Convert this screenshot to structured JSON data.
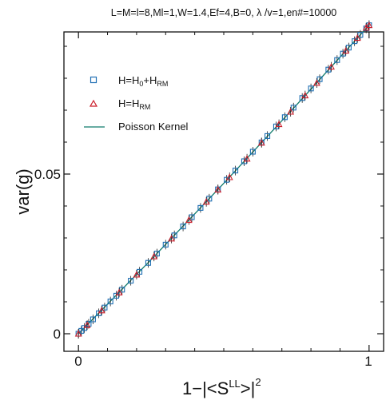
{
  "chart_data": {
    "type": "scatter",
    "title": "L=M=l=8,Ml=1,W=1.4,Ef=4,B=0, λ /v=1,en#=10000",
    "xlabel": "1−|<S",
    "xlabel_sup_ll": "LL",
    "xlabel_tail": ">|",
    "xlabel_sup_2": "2",
    "ylabel": "var(g)",
    "xlim": [
      -0.05,
      1.05
    ],
    "ylim": [
      -0.0055,
      0.0945
    ],
    "x_ticks": [
      0,
      1
    ],
    "y_ticks": [
      0,
      0.05
    ],
    "x_tick_labels": [
      "0",
      "1"
    ],
    "y_tick_labels": [
      "0",
      "0.05"
    ],
    "grid": false,
    "legend_position": "top-left",
    "legend": {
      "entry1": {
        "pre": "H=H",
        "sub1": "0",
        "mid": "+H",
        "sub2": "RM"
      },
      "entry2": {
        "pre": "H=H",
        "sub1": "RM"
      },
      "entry3": "Poisson Kernel"
    },
    "series": [
      {
        "name": "H=H0+HRM",
        "marker": "square",
        "color": "#1f6fb3",
        "x": [
          0.0,
          0.01,
          0.02,
          0.035,
          0.05,
          0.07,
          0.09,
          0.11,
          0.13,
          0.15,
          0.18,
          0.21,
          0.24,
          0.27,
          0.3,
          0.33,
          0.36,
          0.39,
          0.42,
          0.45,
          0.48,
          0.51,
          0.54,
          0.57,
          0.6,
          0.63,
          0.65,
          0.68,
          0.71,
          0.74,
          0.77,
          0.8,
          0.83,
          0.86,
          0.89,
          0.91,
          0.93,
          0.95,
          0.97,
          0.99,
          1.0
        ],
        "y": [
          0.0,
          0.0009,
          0.0018,
          0.0031,
          0.0045,
          0.0064,
          0.0082,
          0.0101,
          0.0119,
          0.0138,
          0.0166,
          0.0194,
          0.0222,
          0.0251,
          0.0279,
          0.0308,
          0.0336,
          0.0365,
          0.0394,
          0.0423,
          0.0452,
          0.0482,
          0.0511,
          0.054,
          0.057,
          0.0599,
          0.0619,
          0.0649,
          0.0678,
          0.0708,
          0.0738,
          0.0768,
          0.0797,
          0.0827,
          0.0857,
          0.0877,
          0.0896,
          0.0916,
          0.0936,
          0.0956,
          0.0966
        ]
      },
      {
        "name": "H=HRM",
        "marker": "triangle",
        "color": "#cc1e2b",
        "x": [
          0.0,
          0.03,
          0.08,
          0.14,
          0.2,
          0.26,
          0.32,
          0.38,
          0.44,
          0.48,
          0.52,
          0.58,
          0.63,
          0.69,
          0.73,
          0.78,
          0.82,
          0.87,
          0.92,
          0.96,
          0.99,
          1.0
        ],
        "y": [
          0.0,
          0.0027,
          0.0073,
          0.0129,
          0.0185,
          0.0242,
          0.0298,
          0.0356,
          0.0413,
          0.0451,
          0.049,
          0.0548,
          0.0598,
          0.0656,
          0.0695,
          0.0746,
          0.0785,
          0.0836,
          0.0886,
          0.0926,
          0.0958,
          0.0966
        ]
      },
      {
        "name": "Poisson Kernel",
        "marker": "line",
        "color": "#0f7a6a",
        "x": [
          0.0,
          0.25,
          0.5,
          0.75,
          1.0
        ],
        "y": [
          0.0,
          0.0232,
          0.0471,
          0.0716,
          0.0966
        ]
      }
    ]
  }
}
